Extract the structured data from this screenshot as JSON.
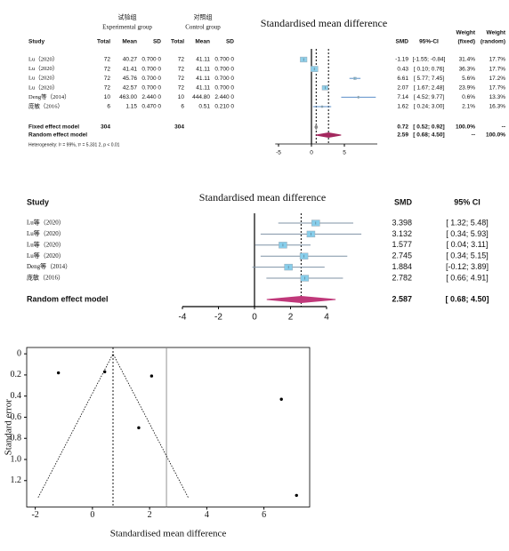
{
  "chart_data": [
    {
      "type": "forest",
      "title": "Standardised mean difference",
      "group_labels": [
        {
          "name": "试验组",
          "name_en": "Experimental group"
        },
        {
          "name": "对照组",
          "name_en": "Control group"
        }
      ],
      "columns": [
        "Study",
        "Total",
        "Mean",
        "SD",
        "Total",
        "Mean",
        "SD",
        "SMD",
        "95%-CI",
        [
          "Weight",
          "(fixed)"
        ],
        [
          "Weight",
          "(random)"
        ]
      ],
      "studies": [
        "Lu（2020）",
        "Lu（2020）",
        "Lu（2020）",
        "Lu（2020）",
        "Deng等（2014）",
        "庞敏（2016）"
      ],
      "table": [
        [
          "72",
          "40.27",
          "0.700 0",
          "72",
          "41.11",
          "0.700 0"
        ],
        [
          "72",
          "41.41",
          "0.700 0",
          "72",
          "41.11",
          "0.700 0"
        ],
        [
          "72",
          "45.76",
          "0.700 0",
          "72",
          "41.11",
          "0.700 0"
        ],
        [
          "72",
          "42.57",
          "0.700 0",
          "72",
          "41.11",
          "0.700 0"
        ],
        [
          "10",
          "463.00",
          "2.440 0",
          "10",
          "444.80",
          "2.440 0"
        ],
        [
          "6",
          "1.15",
          "0.470 0",
          "6",
          "0.51",
          "0.210 0"
        ]
      ],
      "values": [
        -1.19,
        0.43,
        6.61,
        2.07,
        7.14,
        1.62
      ],
      "ci_lower": [
        -1.55,
        0.1,
        5.77,
        1.67,
        4.52,
        0.24
      ],
      "ci_upper": [
        -0.84,
        0.76,
        7.45,
        2.48,
        9.77,
        3.0
      ],
      "ci_labels": [
        "[-1.55; -0.84]",
        "[ 0.10; 0.76]",
        "[ 5.77; 7.45]",
        "[ 1.67; 2.48]",
        "[ 4.52; 9.77]",
        "[ 0.24; 3.00]"
      ],
      "weight_fixed": [
        31.4,
        36.3,
        5.6,
        23.9,
        0.6,
        2.1
      ],
      "weight_fixed_labels": [
        "31.4%",
        "36.3%",
        "5.6%",
        "23.9%",
        "0.6%",
        "2.1%"
      ],
      "weight_random": [
        17.7,
        17.7,
        17.2,
        17.7,
        13.3,
        16.3
      ],
      "weight_random_labels": [
        "17.7%",
        "17.7%",
        "17.2%",
        "17.7%",
        "13.3%",
        "16.3%"
      ],
      "models": [
        {
          "name": "Fixed effect model",
          "totals": [
            "304",
            "304"
          ],
          "value": 0.72,
          "ci_lower": 0.52,
          "ci_upper": 0.92,
          "ci_label": "[ 0.52; 0.92]",
          "weight_fixed_label": "100.0%",
          "weight_random_label": "--",
          "color": "#888888"
        },
        {
          "name": "Random effect  model",
          "value": 2.59,
          "ci_lower": 0.68,
          "ci_upper": 4.5,
          "ci_label": "[ 0.68; 4.50]",
          "weight_fixed_label": "--",
          "weight_random_label": "100.0%",
          "color": "#a3285e"
        }
      ],
      "heterogeneity": "Heterogeneity: I² = 99%, τ² = 5.331 2, p < 0.01",
      "xlim": [
        -5.5,
        10
      ],
      "xticks": [
        -5,
        0,
        5
      ],
      "color": "#8fd0ea",
      "ci_color": "#5b8fc9"
    },
    {
      "type": "forest",
      "title": "Standardised mean difference",
      "columns": [
        "Study",
        "SMD",
        "95% CI"
      ],
      "studies": [
        "Lu等（2020）",
        "Lu等（2020）",
        "Lu等（2020）",
        "Lu等（2020）",
        "Deng等（2014）",
        "庞敏（2016）"
      ],
      "values": [
        3.398,
        3.132,
        1.577,
        2.745,
        1.884,
        2.782
      ],
      "ci_lower": [
        1.32,
        0.34,
        0.04,
        0.34,
        -0.12,
        0.66
      ],
      "ci_upper": [
        5.48,
        5.93,
        3.11,
        5.15,
        3.89,
        4.91
      ],
      "ci_labels": [
        "[ 1.32; 5.48]",
        "[ 0.34; 5.93]",
        "[ 0.04; 3.11]",
        "[ 0.34; 5.15]",
        "[-0.12; 3.89]",
        "[ 0.66; 4.91]"
      ],
      "models": [
        {
          "name": "Random effect  model",
          "value": 2.587,
          "ci_lower": 0.68,
          "ci_upper": 4.5,
          "ci_label": "[ 0.68; 4.50]",
          "color": "#c0387a"
        }
      ],
      "xlim": [
        -4,
        4
      ],
      "xticks": [
        -4,
        -2,
        0,
        2,
        4
      ],
      "color": "#87ceeb",
      "ci_color": "#7f93a6"
    },
    {
      "type": "funnel",
      "xlabel": "Standardised mean difference",
      "ylabel": "Standard error",
      "x": [
        -1.19,
        0.43,
        6.61,
        2.07,
        7.14,
        1.62
      ],
      "values": [
        0.18,
        0.17,
        0.43,
        0.21,
        1.34,
        0.7
      ],
      "xlim": [
        -2.3,
        7.6
      ],
      "xticks": [
        -2,
        0,
        2,
        4,
        6
      ],
      "ylim": [
        -0.06,
        1.45
      ],
      "y_reversed": true,
      "yticks": [
        0,
        0.2,
        0.4,
        0.6,
        0.8,
        {
          "value": 1,
          "label": "1.0"
        },
        1.2
      ],
      "reference_lines": [
        0.72,
        2.59
      ],
      "funnel_limits": {
        "x": [
          -1.9,
          0.72,
          3.35
        ],
        "values": [
          1.36,
          0,
          1.36
        ]
      },
      "color": "#000000"
    }
  ]
}
